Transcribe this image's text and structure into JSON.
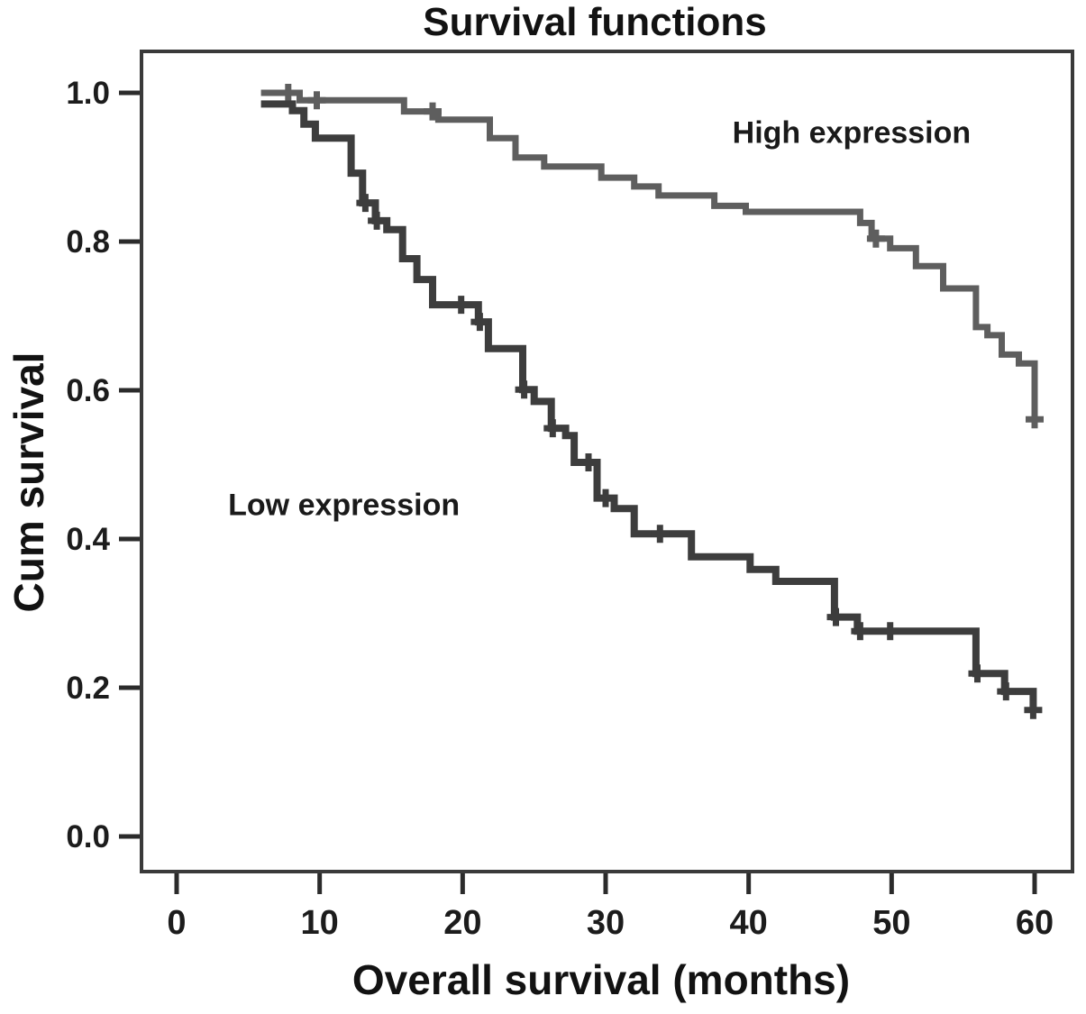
{
  "figure": {
    "title": "Survival functions"
  },
  "axes": {
    "x": {
      "label": "Overall survival (months)",
      "tick_labels": [
        "0",
        "10",
        "20",
        "30",
        "40",
        "50",
        "60"
      ]
    },
    "y": {
      "label": "Cum survival",
      "tick_labels": [
        "1.0",
        "0.8",
        "0.6",
        "0.4",
        "0.2",
        "0.0"
      ]
    }
  },
  "chart_data": {
    "type": "line",
    "subtype": "kaplan_meier_step",
    "title": "Survival functions",
    "xlabel": "Overall survival (months)",
    "ylabel": "Cum survival",
    "xlim": [
      -2.5,
      62.6
    ],
    "ylim": [
      -0.05,
      1.06
    ],
    "x_ticks": [
      0,
      10,
      20,
      30,
      40,
      50,
      60
    ],
    "y_ticks": [
      1.0,
      0.8,
      0.6,
      0.4,
      0.2,
      0.0
    ],
    "grid": false,
    "legend": "inline_annotations",
    "series": [
      {
        "name": "High expression",
        "color": "#5e5e5e",
        "line_width": 7,
        "label_anchor": {
          "month": 47.2,
          "survival": 0.945
        },
        "steps": [
          [
            5.9,
            1.0
          ],
          [
            8.6,
            0.99
          ],
          [
            15.9,
            0.975
          ],
          [
            18.3,
            0.964
          ],
          [
            21.9,
            0.939
          ],
          [
            23.7,
            0.913
          ],
          [
            25.7,
            0.901
          ],
          [
            29.7,
            0.886
          ],
          [
            32.0,
            0.874
          ],
          [
            33.7,
            0.862
          ],
          [
            37.6,
            0.848
          ],
          [
            39.8,
            0.84
          ],
          [
            47.8,
            0.825
          ],
          [
            48.6,
            0.804
          ],
          [
            49.9,
            0.791
          ],
          [
            51.7,
            0.767
          ],
          [
            53.6,
            0.737
          ],
          [
            55.9,
            0.685
          ],
          [
            56.7,
            0.674
          ],
          [
            57.7,
            0.648
          ],
          [
            58.9,
            0.636
          ],
          [
            60.0,
            0.561
          ]
        ],
        "censor_marks": [
          [
            7.8,
            1.0
          ],
          [
            9.8,
            0.99
          ],
          [
            17.9,
            0.975
          ],
          [
            48.9,
            0.804
          ],
          [
            60.0,
            0.561
          ]
        ]
      },
      {
        "name": "Low expression",
        "color": "#3d3d3d",
        "line_width": 8,
        "label_anchor": {
          "month": 11.7,
          "survival": 0.445
        },
        "steps": [
          [
            5.9,
            0.985
          ],
          [
            8.1,
            0.976
          ],
          [
            8.9,
            0.958
          ],
          [
            9.7,
            0.939
          ],
          [
            12.2,
            0.892
          ],
          [
            13.0,
            0.852
          ],
          [
            13.9,
            0.828
          ],
          [
            14.7,
            0.816
          ],
          [
            15.8,
            0.777
          ],
          [
            16.8,
            0.749
          ],
          [
            17.9,
            0.715
          ],
          [
            21.1,
            0.692
          ],
          [
            21.8,
            0.656
          ],
          [
            24.2,
            0.601
          ],
          [
            25.0,
            0.585
          ],
          [
            26.2,
            0.549
          ],
          [
            27.2,
            0.539
          ],
          [
            27.8,
            0.503
          ],
          [
            29.4,
            0.455
          ],
          [
            30.6,
            0.441
          ],
          [
            32.0,
            0.407
          ],
          [
            36.0,
            0.376
          ],
          [
            40.1,
            0.359
          ],
          [
            41.9,
            0.343
          ],
          [
            46.0,
            0.295
          ],
          [
            47.6,
            0.276
          ],
          [
            55.9,
            0.219
          ],
          [
            57.9,
            0.195
          ],
          [
            59.9,
            0.17
          ]
        ],
        "censor_marks": [
          [
            13.2,
            0.852
          ],
          [
            14.0,
            0.828
          ],
          [
            19.9,
            0.715
          ],
          [
            21.2,
            0.692
          ],
          [
            24.3,
            0.601
          ],
          [
            26.3,
            0.549
          ],
          [
            28.8,
            0.503
          ],
          [
            30.0,
            0.455
          ],
          [
            33.8,
            0.407
          ],
          [
            46.1,
            0.295
          ],
          [
            47.8,
            0.276
          ],
          [
            49.9,
            0.276
          ],
          [
            56.0,
            0.219
          ],
          [
            58.0,
            0.195
          ],
          [
            59.9,
            0.17
          ]
        ]
      }
    ]
  }
}
